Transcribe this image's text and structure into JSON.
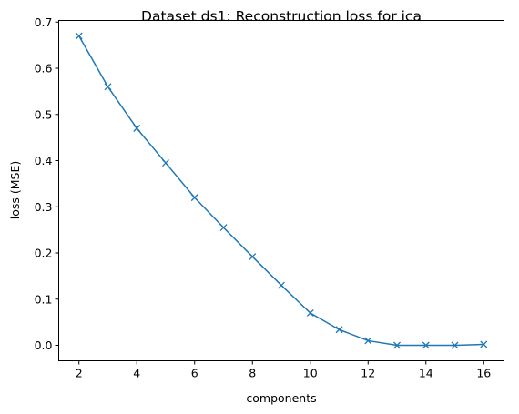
{
  "chart_data": {
    "type": "line",
    "title": "Dataset ds1: Reconstruction loss for ica",
    "xlabel": "components",
    "ylabel": "loss (MSE)",
    "xlim": [
      1.3,
      16.7
    ],
    "ylim": [
      -0.0335,
      0.7035
    ],
    "xticks": [
      2,
      4,
      6,
      8,
      10,
      12,
      14,
      16
    ],
    "yticks": [
      0.0,
      0.1,
      0.2,
      0.3,
      0.4,
      0.5,
      0.6,
      0.7
    ],
    "xtick_labels": [
      "2",
      "4",
      "6",
      "8",
      "10",
      "12",
      "14",
      "16"
    ],
    "ytick_labels": [
      "0.0",
      "0.1",
      "0.2",
      "0.3",
      "0.4",
      "0.5",
      "0.6",
      "0.7"
    ],
    "grid": false,
    "marker": "x",
    "series": [
      {
        "color": "#1f77b4",
        "x": [
          2,
          3,
          4,
          5,
          6,
          7,
          8,
          9,
          10,
          11,
          12,
          13,
          14,
          15,
          16
        ],
        "values": [
          0.67,
          0.56,
          0.47,
          0.395,
          0.32,
          0.255,
          0.192,
          0.13,
          0.07,
          0.034,
          0.01,
          0.0,
          0.0,
          0.0,
          0.002
        ]
      }
    ]
  }
}
